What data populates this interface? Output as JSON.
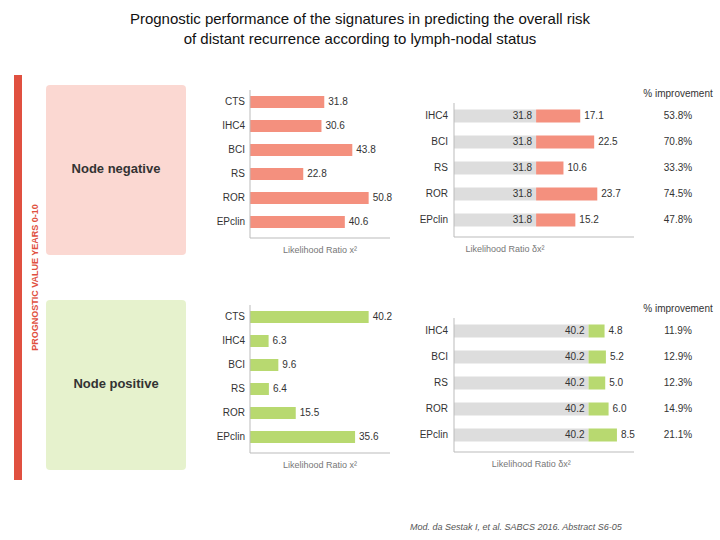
{
  "chart_data": [
    {
      "type": "bar",
      "orientation": "horizontal",
      "title": "Prognostic performance of the signatures in predicting the overall risk",
      "subtitle": "of distant recurrence according to lymph-nodal status",
      "ylabel": "PROGNOSTIC VALUE YEARS 0-10",
      "annotations": [
        "Node negative",
        "Mod. da Sestak I, et al. SABCS 2016. Abstract S6-05"
      ],
      "xlabel": "Likelihood Ratio x²",
      "categories": [
        "CTS",
        "IHC4",
        "BCI",
        "RS",
        "ROR",
        "EPclin"
      ],
      "values": [
        31.8,
        30.6,
        43.8,
        22.8,
        50.8,
        40.6
      ],
      "color": "#F4907E",
      "xlim": [
        0,
        59.944
      ],
      "data_labels": true,
      "tick_labels": "y",
      "grid": false
    },
    {
      "type": "bar",
      "orientation": "horizontal",
      "stacked": true,
      "xlabel": "Likelihood Ratio δx²",
      "categories": [
        "IHC4",
        "BCI",
        "RS",
        "ROR",
        "EPclin"
      ],
      "series": [
        {
          "color": "#DDDDDD",
          "values": [
            31.8,
            31.8,
            31.8,
            31.8,
            31.8
          ]
        },
        {
          "color": "#F4907E",
          "values": [
            17.1,
            22.5,
            10.6,
            23.7,
            15.2
          ]
        }
      ],
      "improvement": {
        "title": "% improvement",
        "labels": [
          "53.8%",
          "70.8%",
          "33.3%",
          "74.5%",
          "47.8%"
        ]
      },
      "xlim": [
        0,
        69.72
      ],
      "data_labels": true,
      "tick_labels": "y",
      "grid": false
    },
    {
      "type": "bar",
      "orientation": "horizontal",
      "annotations": [
        "Node positive"
      ],
      "xlabel": "Likelihood Ratio x²",
      "categories": [
        "CTS",
        "IHC4",
        "BCI",
        "RS",
        "ROR",
        "EPclin"
      ],
      "values": [
        40.2,
        6.3,
        9.6,
        6.4,
        15.5,
        35.6
      ],
      "color": "#B8D970",
      "xlim": [
        0,
        47.436
      ],
      "data_labels": true,
      "tick_labels": "y",
      "grid": false
    },
    {
      "type": "bar",
      "orientation": "horizontal",
      "stacked": true,
      "xlabel": "Likelihood Ratio δx²",
      "categories": [
        "IHC4",
        "BCI",
        "RS",
        "ROR",
        "EPclin"
      ],
      "series": [
        {
          "color": "#DDDDDD",
          "values": [
            40.2,
            40.2,
            40.2,
            40.2,
            40.2
          ]
        },
        {
          "color": "#B8D970",
          "values": [
            4.8,
            5.2,
            5.0,
            6.0,
            8.5
          ],
          "value_labels": [
            "4.8",
            "5.2",
            "5.0",
            "6.0",
            "8.5"
          ]
        }
      ],
      "improvement": {
        "title": "% improvement",
        "labels": [
          "11.9%",
          "12.9%",
          "12.3%",
          "14.9%",
          "21.1%"
        ]
      },
      "xlim": [
        0,
        53.8
      ],
      "data_labels": true,
      "tick_labels": "y",
      "grid": false
    }
  ]
}
